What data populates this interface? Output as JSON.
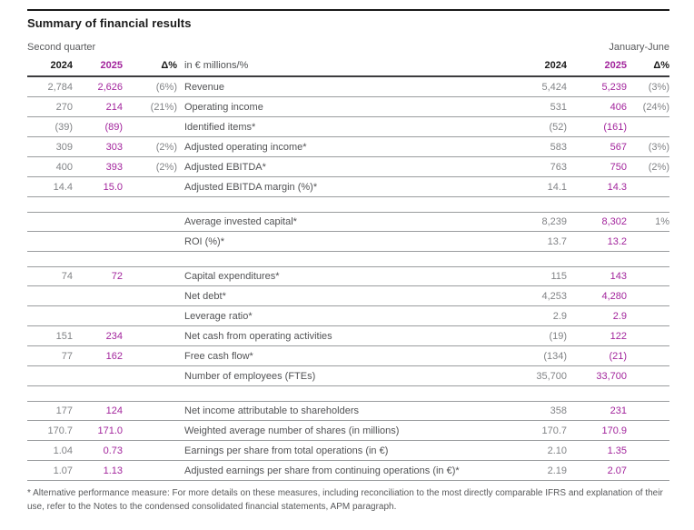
{
  "title": "Summary of financial results",
  "footnote": "* Alternative performance measure: For more details on these measures, including reconciliation to the most directly comparable IFRS and explanation of their use, refer to the Notes to the condensed consolidated financial statements, APM paragraph.",
  "colors": {
    "accent_purple": "#a2249c",
    "number_gray": "#818386",
    "label_gray": "#515254",
    "rule_gray": "#9a9c9e",
    "rule_dark": "#1a1a1a"
  },
  "table": {
    "left_period": "Second quarter",
    "right_period": "January-June",
    "unit_label": "in € millions/%",
    "left_columns": {
      "y2024": "2024",
      "y2025": "2025",
      "delta": "Δ%"
    },
    "right_columns": {
      "y2024": "2024",
      "y2025": "2025",
      "delta": "Δ%"
    },
    "sections": [
      {
        "rows": [
          {
            "q24": "2,784",
            "q25": "2,626",
            "qd": "(6%)",
            "label": "Revenue",
            "h24": "5,424",
            "h25": "5,239",
            "hd": "(3%)"
          },
          {
            "q24": "270",
            "q25": "214",
            "qd": "(21%)",
            "label": "Operating income",
            "h24": "531",
            "h25": "406",
            "hd": "(24%)"
          },
          {
            "q24": "(39)",
            "q25": "(89)",
            "qd": "",
            "label": "Identified items*",
            "h24": "(52)",
            "h25": "(161)",
            "hd": ""
          },
          {
            "q24": "309",
            "q25": "303",
            "qd": "(2%)",
            "label": "Adjusted operating income*",
            "h24": "583",
            "h25": "567",
            "hd": "(3%)"
          },
          {
            "q24": "400",
            "q25": "393",
            "qd": "(2%)",
            "label": "Adjusted EBITDA*",
            "h24": "763",
            "h25": "750",
            "hd": "(2%)"
          },
          {
            "q24": "14.4",
            "q25": "15.0",
            "qd": "",
            "label": "Adjusted EBITDA margin (%)*",
            "h24": "14.1",
            "h25": "14.3",
            "hd": ""
          }
        ]
      },
      {
        "rows": [
          {
            "q24": "",
            "q25": "",
            "qd": "",
            "label": "Average invested capital*",
            "h24": "8,239",
            "h25": "8,302",
            "hd": "1%"
          },
          {
            "q24": "",
            "q25": "",
            "qd": "",
            "label": "ROI (%)*",
            "h24": "13.7",
            "h25": "13.2",
            "hd": ""
          }
        ]
      },
      {
        "rows": [
          {
            "q24": "74",
            "q25": "72",
            "qd": "",
            "label": "Capital expenditures*",
            "h24": "115",
            "h25": "143",
            "hd": ""
          },
          {
            "q24": "",
            "q25": "",
            "qd": "",
            "label": "Net debt*",
            "h24": "4,253",
            "h25": "4,280",
            "hd": ""
          },
          {
            "q24": "",
            "q25": "",
            "qd": "",
            "label": "Leverage ratio*",
            "h24": "2.9",
            "h25": "2.9",
            "hd": ""
          },
          {
            "q24": "151",
            "q25": "234",
            "qd": "",
            "label": "Net cash from operating activities",
            "h24": "(19)",
            "h25": "122",
            "hd": ""
          },
          {
            "q24": "77",
            "q25": "162",
            "qd": "",
            "label": "Free cash flow*",
            "h24": "(134)",
            "h25": "(21)",
            "hd": ""
          },
          {
            "q24": "",
            "q25": "",
            "qd": "",
            "label": "Number of employees (FTEs)",
            "h24": "35,700",
            "h25": "33,700",
            "hd": ""
          }
        ]
      },
      {
        "rows": [
          {
            "q24": "177",
            "q25": "124",
            "qd": "",
            "label": "Net income attributable to shareholders",
            "h24": "358",
            "h25": "231",
            "hd": ""
          },
          {
            "q24": "170.7",
            "q25": "171.0",
            "qd": "",
            "label": "Weighted average number of shares (in millions)",
            "h24": "170.7",
            "h25": "170.9",
            "hd": ""
          },
          {
            "q24": "1.04",
            "q25": "0.73",
            "qd": "",
            "label": "Earnings per share from total operations (in €)",
            "h24": "2.10",
            "h25": "1.35",
            "hd": ""
          },
          {
            "q24": "1.07",
            "q25": "1.13",
            "qd": "",
            "label": "Adjusted earnings per share from continuing operations (in €)*",
            "h24": "2.19",
            "h25": "2.07",
            "hd": ""
          }
        ]
      }
    ]
  }
}
